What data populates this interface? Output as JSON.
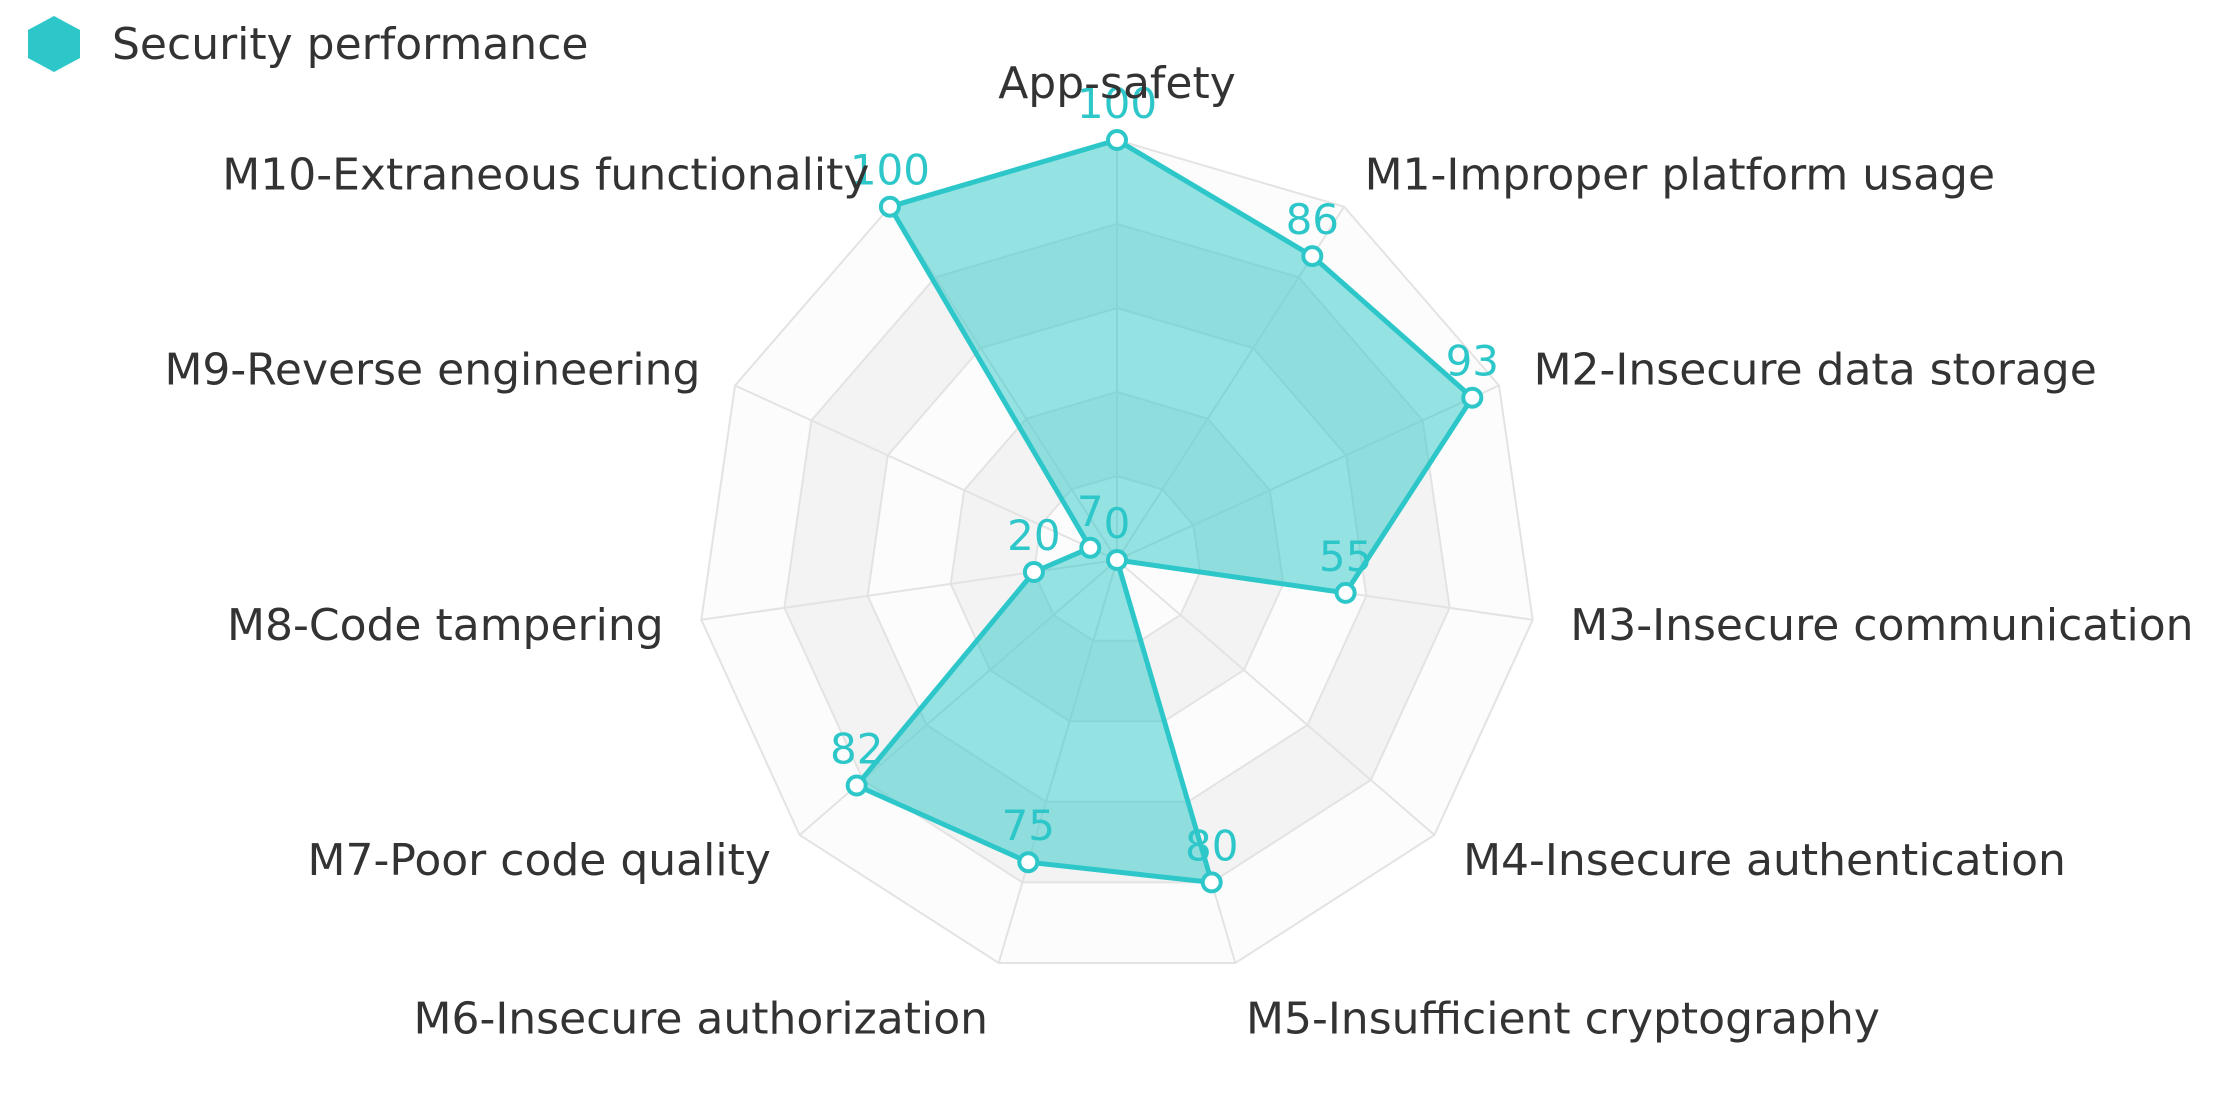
{
  "chart_data": {
    "type": "radar",
    "legend": {
      "position": "top-left"
    },
    "max": 100,
    "rings": 5,
    "color": "#2ec7c9",
    "categories": [
      "App-safety",
      "M1-Improper platform usage",
      "M2-Insecure data storage",
      "M3-Insecure communication",
      "M4-Insecure authentication",
      "M5-Insufficient cryptography",
      "M6-Insecure authorization",
      "M7-Poor code quality",
      "M8-Code tampering",
      "M9-Reverse engineering",
      "M10-Extraneous functionality"
    ],
    "series": [
      {
        "name": "Security performance",
        "values": [
          100,
          86,
          93,
          55,
          0,
          80,
          75,
          82,
          20,
          7,
          100
        ]
      }
    ]
  }
}
